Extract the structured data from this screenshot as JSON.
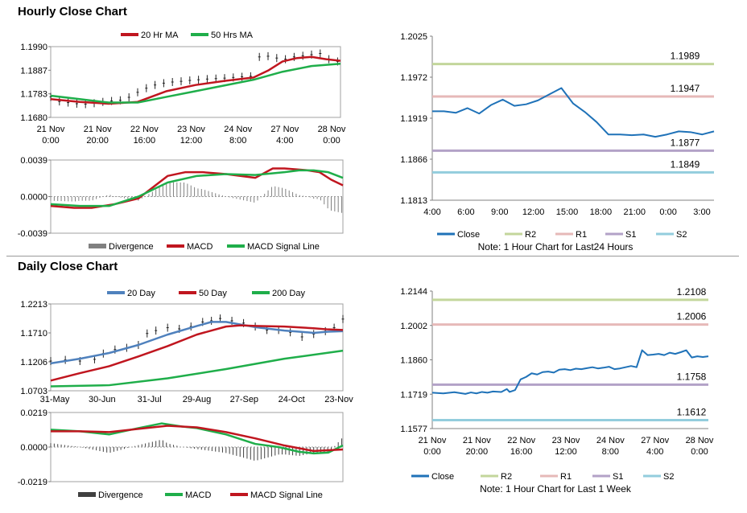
{
  "hourly_section": {
    "title": "Hourly Close Chart"
  },
  "daily_section": {
    "title": "Daily Close Chart"
  },
  "colors": {
    "red": "#c0161f",
    "green": "#1fae4a",
    "blue": "#4f81bd",
    "gray": "#808080",
    "r2": "#c3d69b",
    "r1": "#e6b9b8",
    "s1": "#b3a2c7",
    "s2": "#93cddd",
    "close": "#1f72b8"
  },
  "chart_data": [
    {
      "id": "hourly_price",
      "type": "line",
      "title": "",
      "xlabel": "",
      "ylabel": "",
      "yticks": [
        "1.1990",
        "1.1887",
        "1.1783",
        "1.1680"
      ],
      "ylim": [
        1.168,
        1.199
      ],
      "xticks": [
        "21 Nov\n0:00",
        "21 Nov\n20:00",
        "22 Nov\n16:00",
        "23 Nov\n12:00",
        "24 Nov\n8:00",
        "27 Nov\n4:00",
        "28 Nov\n0:00"
      ],
      "x_range": [
        0,
        100
      ],
      "price_candles": [
        [
          0,
          1.177
        ],
        [
          3,
          1.175
        ],
        [
          6,
          1.1745
        ],
        [
          9,
          1.174
        ],
        [
          12,
          1.1738
        ],
        [
          15,
          1.1742
        ],
        [
          18,
          1.1748
        ],
        [
          21,
          1.1752
        ],
        [
          24,
          1.1755
        ],
        [
          27,
          1.1768
        ],
        [
          30,
          1.179
        ],
        [
          33,
          1.1808
        ],
        [
          36,
          1.1822
        ],
        [
          39,
          1.183
        ],
        [
          42,
          1.1835
        ],
        [
          45,
          1.1838
        ],
        [
          48,
          1.1842
        ],
        [
          51,
          1.1845
        ],
        [
          54,
          1.1848
        ],
        [
          57,
          1.185
        ],
        [
          60,
          1.1852
        ],
        [
          63,
          1.1855
        ],
        [
          66,
          1.1858
        ],
        [
          69,
          1.186
        ],
        [
          72,
          1.1945
        ],
        [
          75,
          1.1948
        ],
        [
          78,
          1.194
        ],
        [
          81,
          1.1935
        ],
        [
          84,
          1.1945
        ],
        [
          87,
          1.195
        ],
        [
          90,
          1.1955
        ],
        [
          93,
          1.196
        ],
        [
          96,
          1.1935
        ],
        [
          99,
          1.1925
        ]
      ],
      "series": [
        {
          "name": "20 Hr MA",
          "color": "#c0161f",
          "x": [
            0,
            10,
            20,
            30,
            40,
            50,
            60,
            70,
            75,
            80,
            85,
            90,
            95,
            100
          ],
          "y": [
            1.176,
            1.1748,
            1.174,
            1.1748,
            1.1795,
            1.1822,
            1.184,
            1.1855,
            1.1885,
            1.1925,
            1.194,
            1.1945,
            1.1935,
            1.1928
          ]
        },
        {
          "name": "50 Hrs MA",
          "color": "#1fae4a",
          "x": [
            0,
            10,
            20,
            30,
            40,
            50,
            60,
            70,
            80,
            90,
            100
          ],
          "y": [
            1.1775,
            1.176,
            1.1745,
            1.1745,
            1.177,
            1.1795,
            1.182,
            1.1845,
            1.188,
            1.1905,
            1.1915
          ]
        }
      ]
    },
    {
      "id": "hourly_macd",
      "type": "line",
      "yticks": [
        "0.0039",
        "0.0000",
        "-0.0039"
      ],
      "ylim": [
        -0.0039,
        0.0039
      ],
      "series": [
        {
          "name": "Divergence",
          "type": "bar",
          "color": "#808080"
        },
        {
          "name": "MACD",
          "color": "#c0161f",
          "x": [
            0,
            8,
            14,
            22,
            30,
            40,
            46,
            52,
            60,
            70,
            76,
            80,
            84,
            88,
            92,
            96,
            100
          ],
          "y": [
            -0.001,
            -0.0012,
            -0.0012,
            -0.0008,
            -0.0002,
            0.0022,
            0.0026,
            0.0026,
            0.0024,
            0.002,
            0.003,
            0.003,
            0.0029,
            0.0028,
            0.0026,
            0.0018,
            0.0012
          ]
        },
        {
          "name": "MACD Signal Line",
          "color": "#1fae4a",
          "x": [
            0,
            10,
            20,
            30,
            40,
            50,
            60,
            70,
            80,
            85,
            90,
            95,
            100
          ],
          "y": [
            -0.0008,
            -0.001,
            -0.001,
            0.0,
            0.0015,
            0.0022,
            0.0024,
            0.0023,
            0.0026,
            0.0028,
            0.0028,
            0.0026,
            0.002
          ]
        }
      ]
    },
    {
      "id": "hourly_levels",
      "type": "line",
      "title": "",
      "note": "Note: 1 Hour Chart for Last24 Hours",
      "yticks": [
        "1.2025",
        "1.1972",
        "1.1919",
        "1.1866",
        "1.1813"
      ],
      "ylim": [
        1.1813,
        1.2025
      ],
      "xticks": [
        "4:00",
        "6:00",
        "9:00",
        "12:00",
        "15:00",
        "18:00",
        "21:00",
        "0:00",
        "3:00"
      ],
      "close": {
        "name": "Close",
        "x": [
          0,
          1,
          2,
          3,
          4,
          5,
          6,
          7,
          8,
          9,
          10,
          11,
          12,
          13,
          14,
          15,
          16,
          17,
          18,
          19,
          20,
          21,
          22,
          23,
          24
        ],
        "y": [
          1.1928,
          1.1928,
          1.1926,
          1.1932,
          1.1925,
          1.1936,
          1.1943,
          1.1935,
          1.1937,
          1.1942,
          1.195,
          1.1958,
          1.1938,
          1.1927,
          1.1914,
          1.1898,
          1.1898,
          1.1897,
          1.1898,
          1.1895,
          1.1898,
          1.1902,
          1.1901,
          1.1898,
          1.1902
        ]
      },
      "levels": [
        {
          "name": "R2",
          "value": 1.1989,
          "label": "1.1989",
          "color": "#c3d69b"
        },
        {
          "name": "R1",
          "value": 1.1947,
          "label": "1.1947",
          "color": "#e6b9b8"
        },
        {
          "name": "S1",
          "value": 1.1877,
          "label": "1.1877",
          "color": "#b3a2c7"
        },
        {
          "name": "S2",
          "value": 1.1849,
          "label": "1.1849",
          "color": "#93cddd"
        }
      ]
    },
    {
      "id": "daily_price",
      "type": "line",
      "yticks": [
        "1.2213",
        "1.1710",
        "1.1206",
        "1.0703"
      ],
      "ylim": [
        1.0703,
        1.2213
      ],
      "xticks": [
        "31-May",
        "30-Jun",
        "31-Jul",
        "29-Aug",
        "27-Sep",
        "24-Oct",
        "23-Nov"
      ],
      "price_candles": [
        [
          0,
          1.122
        ],
        [
          5,
          1.124
        ],
        [
          10,
          1.122
        ],
        [
          15,
          1.125
        ],
        [
          18,
          1.135
        ],
        [
          22,
          1.142
        ],
        [
          26,
          1.145
        ],
        [
          30,
          1.15
        ],
        [
          33,
          1.17
        ],
        [
          36,
          1.175
        ],
        [
          40,
          1.18
        ],
        [
          44,
          1.178
        ],
        [
          48,
          1.182
        ],
        [
          52,
          1.19
        ],
        [
          55,
          1.192
        ],
        [
          58,
          1.196
        ],
        [
          62,
          1.192
        ],
        [
          66,
          1.188
        ],
        [
          70,
          1.182
        ],
        [
          74,
          1.176
        ],
        [
          78,
          1.176
        ],
        [
          82,
          1.172
        ],
        [
          86,
          1.164
        ],
        [
          90,
          1.169
        ],
        [
          94,
          1.174
        ],
        [
          97,
          1.18
        ],
        [
          100,
          1.195
        ]
      ],
      "series": [
        {
          "name": "20 Day",
          "color": "#4f81bd",
          "x": [
            0,
            10,
            20,
            30,
            40,
            50,
            55,
            60,
            70,
            80,
            85,
            90,
            95,
            100
          ],
          "y": [
            1.118,
            1.126,
            1.136,
            1.15,
            1.168,
            1.183,
            1.19,
            1.19,
            1.181,
            1.175,
            1.173,
            1.171,
            1.173,
            1.174
          ]
        },
        {
          "name": "50 Day",
          "color": "#c0161f",
          "x": [
            0,
            10,
            20,
            30,
            40,
            50,
            60,
            65,
            70,
            80,
            90,
            95,
            100
          ],
          "y": [
            1.088,
            1.101,
            1.113,
            1.13,
            1.148,
            1.168,
            1.182,
            1.184,
            1.183,
            1.182,
            1.179,
            1.177,
            1.176
          ]
        },
        {
          "name": "200 Day",
          "color": "#1fae4a",
          "x": [
            0,
            20,
            40,
            60,
            80,
            100
          ],
          "y": [
            1.078,
            1.08,
            1.092,
            1.108,
            1.126,
            1.14
          ]
        }
      ]
    },
    {
      "id": "daily_macd",
      "type": "line",
      "yticks": [
        "0.0219",
        "0.0000",
        "-0.0219"
      ],
      "ylim": [
        -0.0219,
        0.0219
      ],
      "series": [
        {
          "name": "Divergence",
          "type": "bar",
          "color": "#404040"
        },
        {
          "name": "MACD",
          "color": "#1fae4a",
          "x": [
            0,
            10,
            20,
            30,
            38,
            45,
            50,
            60,
            70,
            78,
            85,
            90,
            95,
            100
          ],
          "y": [
            0.011,
            0.01,
            0.008,
            0.012,
            0.015,
            0.013,
            0.012,
            0.008,
            0.002,
            0.0,
            -0.003,
            -0.004,
            -0.0035,
            0.001
          ]
        },
        {
          "name": "MACD Signal Line",
          "color": "#c0161f",
          "x": [
            0,
            10,
            20,
            30,
            40,
            50,
            60,
            70,
            80,
            90,
            100
          ],
          "y": [
            0.01,
            0.01,
            0.0095,
            0.0115,
            0.0135,
            0.0125,
            0.0095,
            0.0055,
            0.001,
            -0.0025,
            -0.0015
          ]
        }
      ]
    },
    {
      "id": "daily_levels",
      "type": "line",
      "note": "Note: 1 Hour Chart for Last 1 Week",
      "yticks": [
        "1.2144",
        "1.2002",
        "1.1860",
        "1.1719",
        "1.1577"
      ],
      "ylim": [
        1.1577,
        1.2144
      ],
      "xticks": [
        "21 Nov\n0:00",
        "21 Nov\n20:00",
        "22 Nov\n16:00",
        "23 Nov\n12:00",
        "24 Nov\n8:00",
        "27 Nov\n4:00",
        "28 Nov\n0:00"
      ],
      "close": {
        "name": "Close",
        "x": [
          0,
          4,
          8,
          12,
          14,
          16,
          18,
          20,
          22,
          25,
          27,
          28,
          30,
          32,
          34,
          36,
          38,
          40,
          42,
          44,
          46,
          48,
          50,
          52,
          54,
          56,
          58,
          60,
          62,
          64,
          66,
          68,
          70,
          72,
          74,
          76,
          78,
          80,
          82,
          84,
          86,
          88,
          90,
          92,
          94,
          96,
          98,
          100
        ],
        "y": [
          1.1725,
          1.1722,
          1.1727,
          1.172,
          1.1726,
          1.1722,
          1.1728,
          1.1725,
          1.173,
          1.1728,
          1.174,
          1.1728,
          1.1736,
          1.178,
          1.179,
          1.1805,
          1.18,
          1.181,
          1.1812,
          1.1808,
          1.182,
          1.1822,
          1.1818,
          1.1824,
          1.1822,
          1.1826,
          1.183,
          1.1825,
          1.1828,
          1.1832,
          1.1822,
          1.1825,
          1.183,
          1.1835,
          1.183,
          1.19,
          1.188,
          1.1882,
          1.1885,
          1.188,
          1.189,
          1.1885,
          1.1892,
          1.19,
          1.187,
          1.1875,
          1.1872,
          1.1875
        ]
      },
      "levels": [
        {
          "name": "R2",
          "value": 1.2108,
          "label": "1.2108",
          "color": "#c3d69b"
        },
        {
          "name": "R1",
          "value": 1.2006,
          "label": "1.2006",
          "color": "#e6b9b8"
        },
        {
          "name": "S1",
          "value": 1.1758,
          "label": "1.1758",
          "color": "#b3a2c7"
        },
        {
          "name": "S2",
          "value": 1.1612,
          "label": "1.1612",
          "color": "#93cddd"
        }
      ]
    }
  ]
}
